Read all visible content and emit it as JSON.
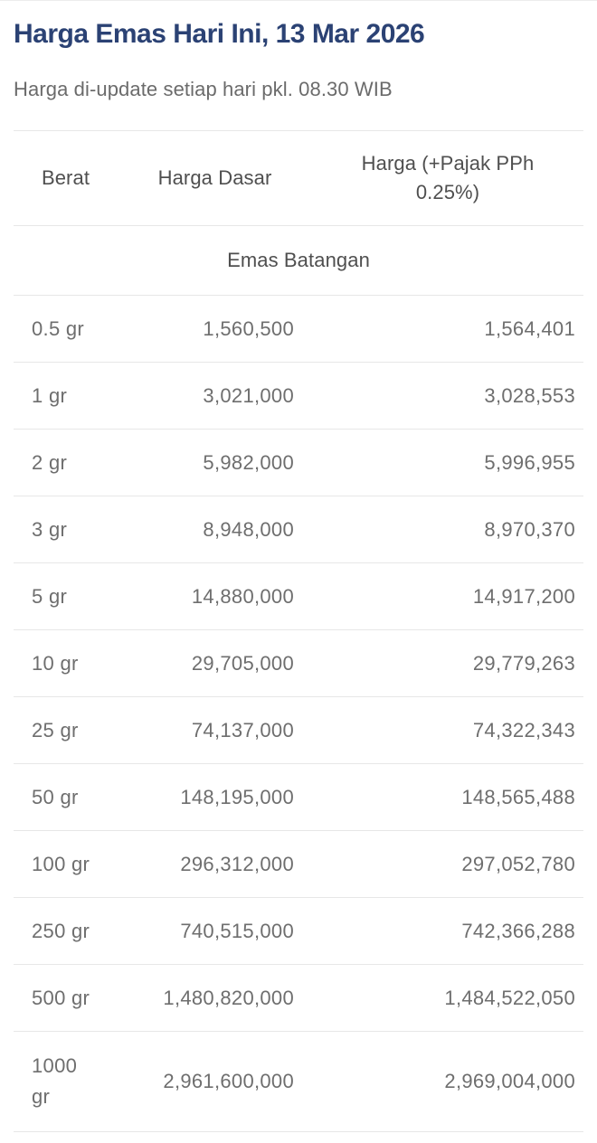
{
  "page": {
    "title": "Harga Emas Hari Ini, 13 Mar 2026",
    "subtitle": "Harga di-update setiap hari pkl. 08.30 WIB"
  },
  "table": {
    "columns": {
      "weight": "Berat",
      "base_price": "Harga Dasar",
      "taxed_price": "Harga (+Pajak PPh 0.25%)"
    },
    "section": "Emas Batangan",
    "rows": [
      {
        "berat": "0.5 gr",
        "harga_dasar": "1,560,500",
        "harga_pajak": "1,564,401"
      },
      {
        "berat": "1 gr",
        "harga_dasar": "3,021,000",
        "harga_pajak": "3,028,553"
      },
      {
        "berat": "2 gr",
        "harga_dasar": "5,982,000",
        "harga_pajak": "5,996,955"
      },
      {
        "berat": "3 gr",
        "harga_dasar": "8,948,000",
        "harga_pajak": "8,970,370"
      },
      {
        "berat": "5 gr",
        "harga_dasar": "14,880,000",
        "harga_pajak": "14,917,200"
      },
      {
        "berat": "10 gr",
        "harga_dasar": "29,705,000",
        "harga_pajak": "29,779,263"
      },
      {
        "berat": "25 gr",
        "harga_dasar": "74,137,000",
        "harga_pajak": "74,322,343"
      },
      {
        "berat": "50 gr",
        "harga_dasar": "148,195,000",
        "harga_pajak": "148,565,488"
      },
      {
        "berat": "100 gr",
        "harga_dasar": "296,312,000",
        "harga_pajak": "297,052,780"
      },
      {
        "berat": "250 gr",
        "harga_dasar": "740,515,000",
        "harga_pajak": "742,366,288"
      },
      {
        "berat": "500 gr",
        "harga_dasar": "1,480,820,000",
        "harga_pajak": "1,484,522,050"
      },
      {
        "berat": "1000 gr",
        "harga_dasar": "2,961,600,000",
        "harga_pajak": "2,969,004,000"
      }
    ]
  },
  "colors": {
    "title_color": "#2b4274",
    "header_text": "#4f4f4f",
    "body_text": "#6e6e6e",
    "divider": "#e7e7e7",
    "page_bg": "#ffffff"
  }
}
